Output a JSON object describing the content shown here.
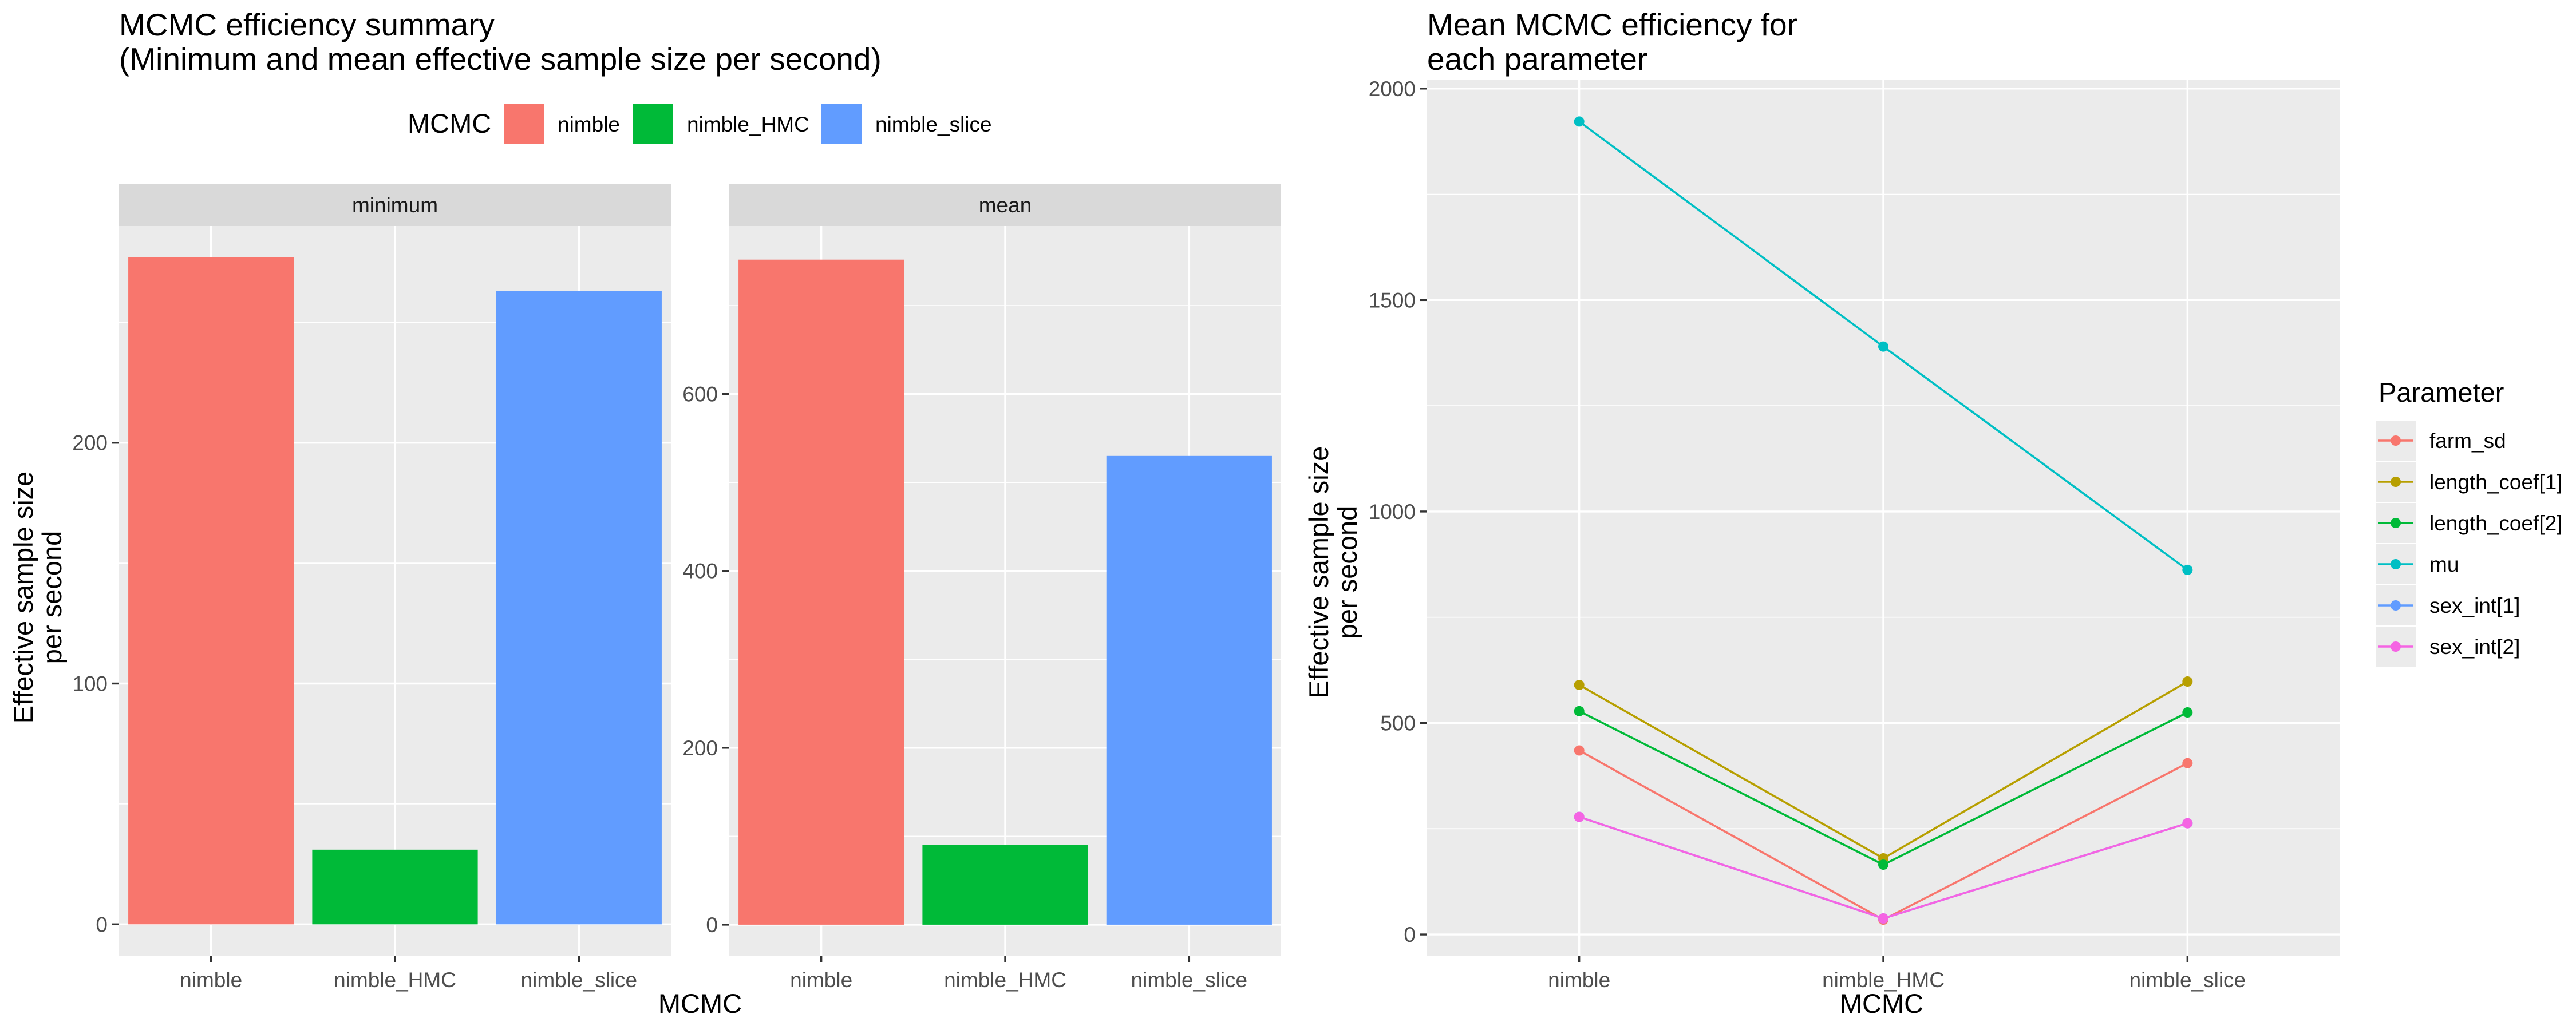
{
  "left_figure": {
    "title_line1": "MCMC efficiency summary",
    "title_line2": "(Minimum and mean effective sample size per second)",
    "legend_title": "MCMC",
    "legend_items": [
      {
        "label": "nimble",
        "color": "#F8766D"
      },
      {
        "label": "nimble_HMC",
        "color": "#00BA38"
      },
      {
        "label": "nimble_slice",
        "color": "#619CFF"
      }
    ],
    "ylabel_line1": "Effective sample size",
    "ylabel_line2": "per second",
    "xlabel": "MCMC"
  },
  "right_figure": {
    "title_line1": "Mean MCMC efficiency for",
    "title_line2": " each parameter",
    "ylabel_line1": "Effective sample size",
    "ylabel_line2": "per second",
    "xlabel": "MCMC",
    "legend_title": "Parameter"
  },
  "chart_data": [
    {
      "type": "bar",
      "facet": "minimum",
      "categories": [
        "nimble",
        "nimble_HMC",
        "nimble_slice"
      ],
      "values": [
        277,
        31,
        263
      ],
      "colors": [
        "#F8766D",
        "#00BA38",
        "#619CFF"
      ],
      "ylim": [
        -13,
        290
      ],
      "yticks": [
        0,
        100,
        200
      ],
      "grid": true
    },
    {
      "type": "bar",
      "facet": "mean",
      "categories": [
        "nimble",
        "nimble_HMC",
        "nimble_slice"
      ],
      "values": [
        752,
        90,
        530
      ],
      "colors": [
        "#F8766D",
        "#00BA38",
        "#619CFF"
      ],
      "ylim": [
        -35,
        790
      ],
      "yticks": [
        0,
        200,
        400,
        600
      ],
      "grid": true
    },
    {
      "type": "line",
      "x": [
        "nimble",
        "nimble_HMC",
        "nimble_slice"
      ],
      "ylim": [
        -50,
        2020
      ],
      "yticks": [
        0,
        500,
        1000,
        1500,
        2000
      ],
      "grid": true,
      "legend_position": "right",
      "series": [
        {
          "name": "farm_sd",
          "color": "#F8766D",
          "values": [
            435,
            35,
            405
          ]
        },
        {
          "name": "length_coef[1]",
          "color": "#B79F00",
          "values": [
            590,
            180,
            598
          ]
        },
        {
          "name": "length_coef[2]",
          "color": "#00BA38",
          "values": [
            528,
            165,
            525
          ]
        },
        {
          "name": "mu",
          "color": "#00BFC4",
          "values": [
            1922,
            1390,
            862
          ]
        },
        {
          "name": "sex_int[1]",
          "color": "#619CFF",
          "values": [
            278,
            38,
            263
          ]
        },
        {
          "name": "sex_int[2]",
          "color": "#F564E3",
          "values": [
            278,
            38,
            263
          ]
        }
      ]
    }
  ]
}
